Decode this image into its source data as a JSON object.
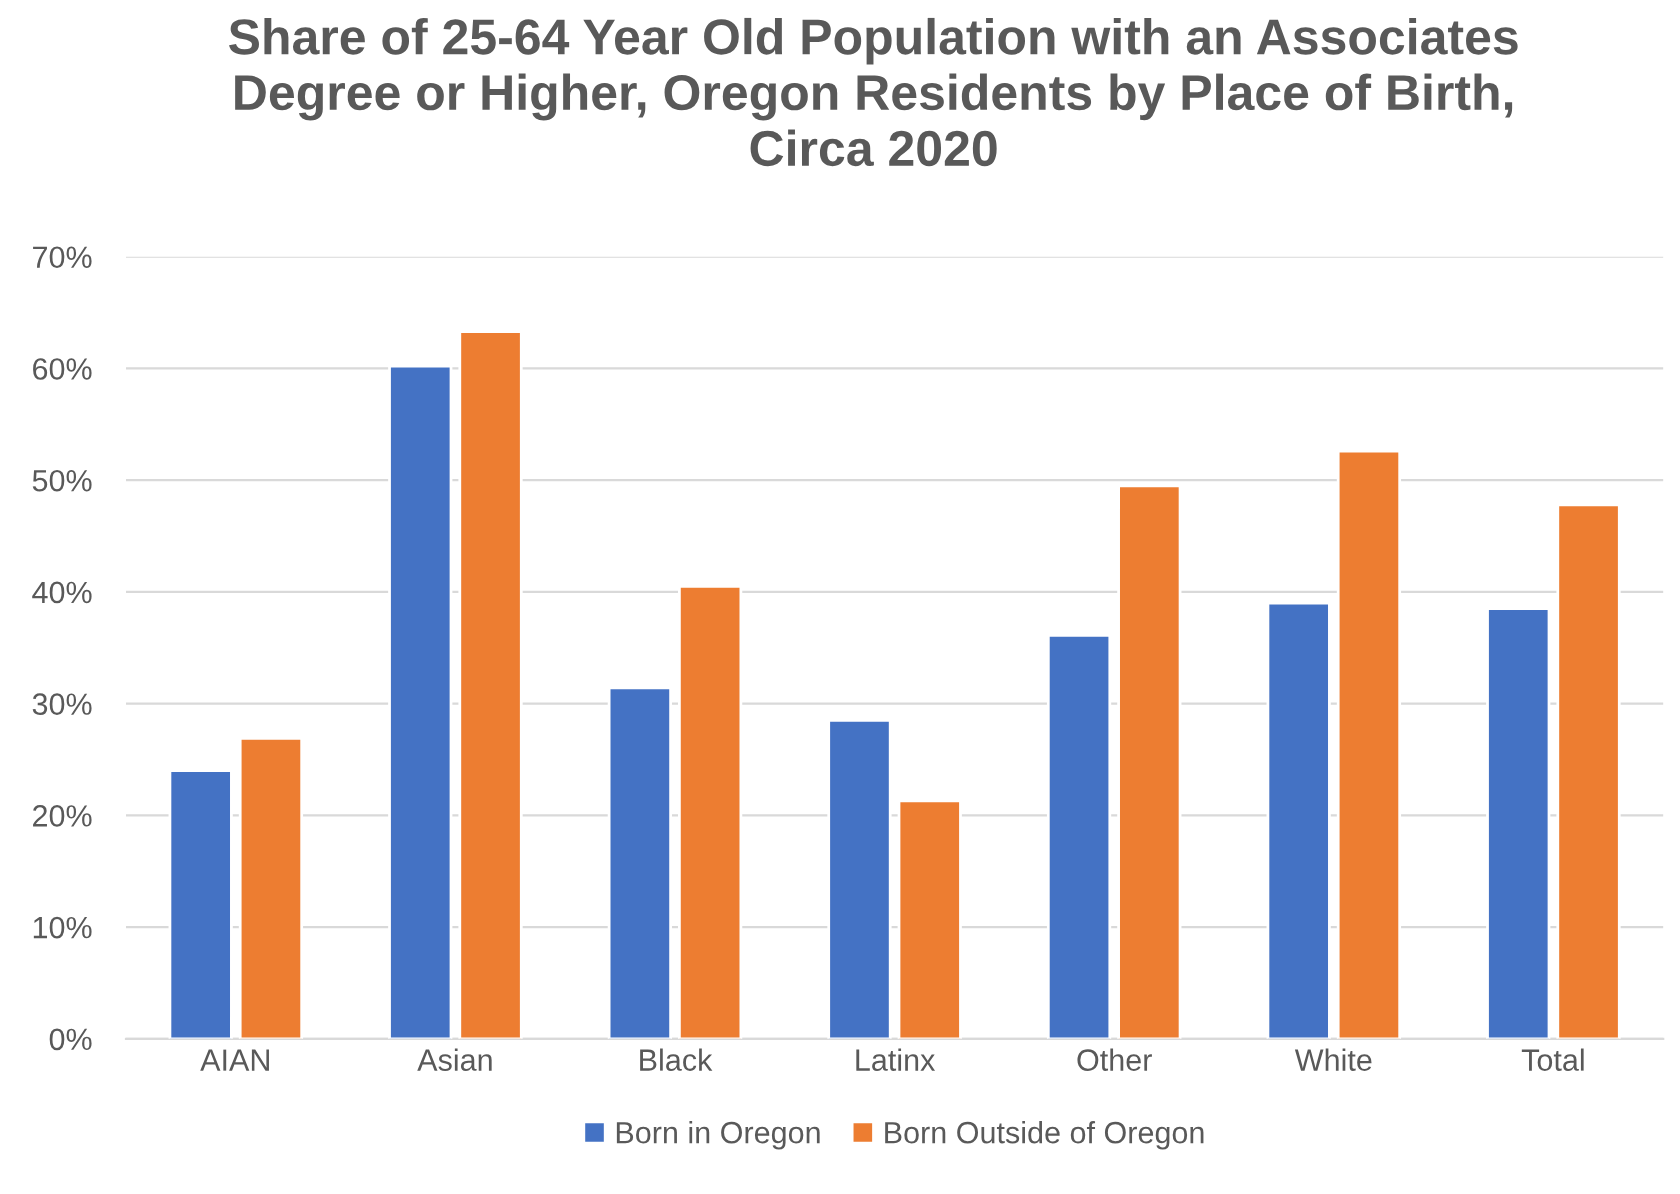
{
  "chart_data": {
    "type": "bar",
    "title": "Share of 25-64 Year Old Population with an Associates\nDegree or Higher, Oregon Residents by Place of Birth,\nCirca 2020",
    "categories": [
      "AIAN",
      "Asian",
      "Black",
      "Latinx",
      "Other",
      "White",
      "Total"
    ],
    "series": [
      {
        "name": "Born in Oregon",
        "color": "#4472c4",
        "values": [
          24.0,
          60.2,
          31.4,
          28.5,
          36.1,
          39.0,
          38.5
        ]
      },
      {
        "name": "Born Outside of Oregon",
        "color": "#ed7d31",
        "values": [
          26.9,
          63.3,
          40.5,
          21.3,
          49.5,
          52.6,
          47.8
        ]
      }
    ],
    "ylim": [
      0,
      70
    ],
    "yticks": [
      {
        "value": 0,
        "label": "0%"
      },
      {
        "value": 10,
        "label": "10%"
      },
      {
        "value": 20,
        "label": "20%"
      },
      {
        "value": 30,
        "label": "30%"
      },
      {
        "value": 40,
        "label": "40%"
      },
      {
        "value": 50,
        "label": "50%"
      },
      {
        "value": 60,
        "label": "60%"
      },
      {
        "value": 70,
        "label": "70%"
      }
    ],
    "grid": "y",
    "legend": "bottom"
  }
}
